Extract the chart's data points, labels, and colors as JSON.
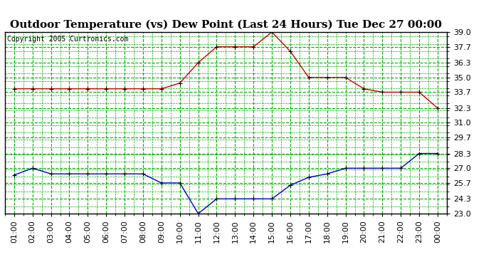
{
  "title": "Outdoor Temperature (vs) Dew Point (Last 24 Hours) Tue Dec 27 00:00",
  "copyright": "Copyright 2005 Curtronics.com",
  "x_labels": [
    "01:00",
    "02:00",
    "03:00",
    "04:00",
    "05:00",
    "06:00",
    "07:00",
    "08:00",
    "09:00",
    "10:00",
    "11:00",
    "12:00",
    "13:00",
    "14:00",
    "15:00",
    "16:00",
    "17:00",
    "18:00",
    "19:00",
    "20:00",
    "21:00",
    "22:00",
    "23:00",
    "00:00"
  ],
  "temp_data": [
    34.0,
    34.0,
    34.0,
    34.0,
    34.0,
    34.0,
    34.0,
    34.0,
    34.0,
    34.5,
    36.3,
    37.7,
    37.7,
    37.7,
    39.0,
    37.3,
    35.0,
    35.0,
    35.0,
    34.0,
    33.7,
    33.7,
    33.7,
    32.3
  ],
  "dew_data": [
    26.4,
    27.0,
    26.5,
    26.5,
    26.5,
    26.5,
    26.5,
    26.5,
    25.7,
    25.7,
    23.0,
    24.3,
    24.3,
    24.3,
    24.3,
    25.5,
    26.2,
    26.5,
    27.0,
    27.0,
    27.0,
    27.0,
    28.3,
    28.3
  ],
  "ylim": [
    23.0,
    39.0
  ],
  "yticks": [
    23.0,
    24.3,
    25.7,
    27.0,
    28.3,
    29.7,
    31.0,
    32.3,
    33.7,
    35.0,
    36.3,
    37.7,
    39.0
  ],
  "temp_color": "#cc0000",
  "dew_color": "#0000cc",
  "bg_color": "#ffffff",
  "plot_bg": "#ffffff",
  "grid_color": "#00aa00",
  "title_fontsize": 11,
  "copyright_fontsize": 7,
  "tick_fontsize": 8
}
